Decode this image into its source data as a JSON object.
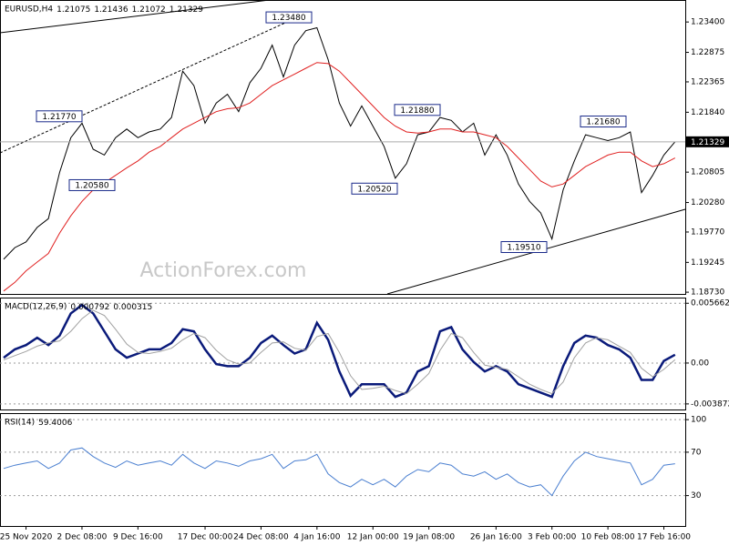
{
  "chart_data": [
    {
      "type": "line",
      "title": "EURUSD,H4",
      "ohlc": [
        1.21075,
        1.21436,
        1.21072,
        1.21329
      ],
      "watermark": "ActionForex.com",
      "categories": [
        null,
        null,
        "25 Nov 2020",
        null,
        null,
        null,
        null,
        "2 Dec 08:00",
        null,
        null,
        null,
        null,
        "9 Dec 16:00",
        null,
        null,
        null,
        null,
        null,
        "17 Dec 00:00",
        null,
        null,
        null,
        null,
        "24 Dec 08:00",
        null,
        null,
        null,
        null,
        "4 Jan 16:00",
        null,
        null,
        null,
        null,
        "12 Jan 00:00",
        null,
        null,
        null,
        null,
        "19 Jan 08:00",
        null,
        null,
        null,
        null,
        null,
        "26 Jan 16:00",
        null,
        null,
        null,
        null,
        "3 Feb 00:00",
        null,
        null,
        null,
        null,
        "10 Feb 08:00",
        null,
        null,
        null,
        null,
        "17 Feb 16:00",
        null
      ],
      "series": [
        {
          "color": "#000000",
          "values": [
            1.193,
            1.195,
            1.196,
            1.1985,
            1.2,
            1.208,
            1.214,
            1.2165,
            1.212,
            1.211,
            1.214,
            1.2155,
            1.214,
            1.215,
            1.2155,
            1.2175,
            1.2255,
            1.223,
            1.2165,
            1.22,
            1.2215,
            1.2185,
            1.2235,
            1.226,
            1.23,
            1.2245,
            1.23,
            1.2325,
            1.233,
            1.2275,
            1.22,
            1.216,
            1.2195,
            1.216,
            1.2125,
            1.207,
            1.2095,
            1.2145,
            1.215,
            1.2175,
            1.217,
            1.215,
            1.2165,
            1.211,
            1.2145,
            1.211,
            1.206,
            1.203,
            1.201,
            1.1965,
            1.205,
            1.21,
            1.2145,
            1.214,
            1.2135,
            1.214,
            1.215,
            1.2045,
            1.2075,
            1.211,
            1.21329
          ]
        },
        {
          "color": "#e02020",
          "values": [
            1.1875,
            1.189,
            1.191,
            1.1925,
            1.194,
            1.1975,
            1.2005,
            1.203,
            1.205,
            1.2062,
            1.2075,
            1.2088,
            1.21,
            1.2115,
            1.2125,
            1.214,
            1.2155,
            1.2165,
            1.2175,
            1.2185,
            1.219,
            1.2192,
            1.22,
            1.2215,
            1.223,
            1.224,
            1.225,
            1.226,
            1.227,
            1.2268,
            1.2255,
            1.2235,
            1.2215,
            1.2195,
            1.2175,
            1.216,
            1.215,
            1.2148,
            1.215,
            1.2155,
            1.2155,
            1.215,
            1.215,
            1.2145,
            1.214,
            1.2125,
            1.2105,
            1.2085,
            1.2065,
            1.2055,
            1.206,
            1.2075,
            1.209,
            1.21,
            1.211,
            1.2115,
            1.2115,
            1.21,
            1.209,
            1.2095,
            1.2105
          ]
        }
      ],
      "annotations": [
        {
          "value": 1.2348,
          "label": "1.23480"
        },
        {
          "value": 1.2177,
          "label": "1.21770"
        },
        {
          "value": 1.2058,
          "label": "1.20580"
        },
        {
          "value": 1.2052,
          "label": "1.20520"
        },
        {
          "value": 1.2188,
          "label": "1.21880"
        },
        {
          "value": 1.1951,
          "label": "1.19510"
        },
        {
          "value": 1.2168,
          "label": "1.21680"
        }
      ],
      "last_price": {
        "value": 1.21329,
        "label": "1.21329"
      },
      "ylim": [
        1.187,
        1.2378
      ],
      "yticks": [
        {
          "value": 1.234,
          "label": "1.23400"
        },
        1.22875,
        1.22365,
        {
          "value": 1.2184,
          "label": "1.21840"
        },
        1.20805,
        {
          "value": 1.2028,
          "label": "1.20280"
        },
        {
          "value": 1.1977,
          "label": "1.19770"
        },
        1.19245,
        {
          "value": 1.1873,
          "label": "1.18730"
        }
      ]
    },
    {
      "type": "line",
      "title": "MACD(12,26,9)",
      "last_values": [
        0.000792,
        0.000315
      ],
      "series": [
        {
          "color": "#0a1a7a",
          "values": [
            0.0005,
            0.0013,
            0.0017,
            0.0024,
            0.0017,
            0.0026,
            0.0047,
            0.0055,
            0.0047,
            0.003,
            0.0013,
            0.0005,
            0.0009,
            0.0013,
            0.0013,
            0.0019,
            0.0032,
            0.003,
            0.0013,
            -0.0001,
            -0.0003,
            -0.0003,
            0.0005,
            0.0019,
            0.0026,
            0.0017,
            0.0009,
            0.0013,
            0.0038,
            0.0022,
            -0.0008,
            -0.0031,
            -0.002,
            -0.002,
            -0.002,
            -0.0032,
            -0.0028,
            -0.0008,
            -0.0003,
            0.003,
            0.0034,
            0.0013,
            0.0001,
            -0.0008,
            -0.0003,
            -0.0008,
            -0.002,
            -0.0024,
            -0.0028,
            -0.0032,
            -0.0003,
            0.0019,
            0.0026,
            0.0024,
            0.0017,
            0.0013,
            0.0005,
            -0.0016,
            -0.0016,
            0.0002,
            0.000792
          ]
        },
        {
          "color": "#a0a0a0",
          "values": [
            0.0003,
            0.0007,
            0.0011,
            0.0016,
            0.0019,
            0.0021,
            0.003,
            0.0042,
            0.005,
            0.0045,
            0.0032,
            0.0018,
            0.001,
            0.0009,
            0.0011,
            0.0014,
            0.0022,
            0.0028,
            0.0024,
            0.0012,
            0.0003,
            -0.0001,
            0,
            0.001,
            0.0019,
            0.002,
            0.0014,
            0.0012,
            0.0025,
            0.0028,
            0.001,
            -0.0012,
            -0.0025,
            -0.0024,
            -0.0022,
            -0.0026,
            -0.0029,
            -0.002,
            -0.001,
            0.0012,
            0.0028,
            0.0024,
            0.001,
            -0.0002,
            -0.0004,
            -0.0006,
            -0.0013,
            -0.002,
            -0.0025,
            -0.0029,
            -0.0018,
            0.0005,
            0.0019,
            0.0024,
            0.0022,
            0.0016,
            0.001,
            -0.0005,
            -0.0013,
            -0.0006,
            0.000315
          ]
        }
      ],
      "ylim": [
        -0.0044,
        0.0062
      ],
      "yticks": [
        0.005662,
        {
          "value": 0,
          "label": "0.00"
        },
        -0.003872
      ]
    },
    {
      "type": "line",
      "title": "RSI(14)",
      "last_values": [
        59.4006
      ],
      "series": [
        {
          "color": "#4a7fd0",
          "values": [
            55,
            58,
            60,
            62,
            55,
            60,
            72,
            74,
            66,
            60,
            56,
            62,
            58,
            60,
            62,
            58,
            68,
            60,
            55,
            62,
            60,
            57,
            62,
            64,
            68,
            55,
            62,
            63,
            68,
            50,
            42,
            38,
            45,
            40,
            45,
            38,
            48,
            54,
            52,
            60,
            58,
            50,
            48,
            52,
            45,
            50,
            42,
            38,
            40,
            30,
            48,
            62,
            70,
            66,
            64,
            62,
            60,
            40,
            45,
            58,
            59.4
          ]
        }
      ],
      "ylim": [
        2,
        106
      ],
      "yticks": [
        100,
        70,
        30
      ]
    }
  ]
}
